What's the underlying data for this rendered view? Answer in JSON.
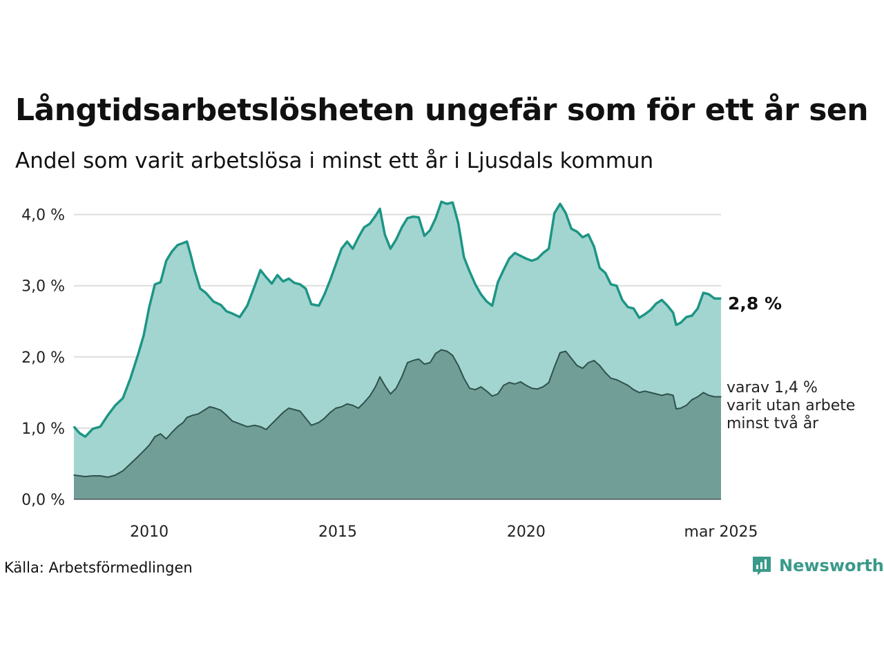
{
  "title": "Långtidsarbetslösheten ungefär som för ett år sen",
  "subtitle": "Andel som varit arbetslösa i minst ett år i Ljusdals kommun",
  "source": "Källa: Arbetsförmedlingen",
  "brand": {
    "name": "Newsworthy",
    "icon": "newsworthy-logo-icon",
    "color": "#3a9a8a"
  },
  "colors": {
    "total_line": "#1d9585",
    "total_fill": "#a3d5d0",
    "long_line": "#2e524b",
    "long_fill": "#719e97",
    "grid": "#dddddd"
  },
  "labels": {
    "last_value": "2,8 %",
    "sub_lines": [
      "varav 1,4 %",
      "varit utan arbete",
      "minst två år"
    ]
  },
  "chart_data": {
    "type": "area",
    "x_ticks": [
      {
        "x": 2010,
        "label": "2010"
      },
      {
        "x": 2015,
        "label": "2015"
      },
      {
        "x": 2020,
        "label": "2020"
      },
      {
        "x": 2025.17,
        "label": "mar 2025"
      }
    ],
    "xlim": [
      2008.0,
      2025.17
    ],
    "y_ticks": [
      {
        "v": 0,
        "label": "0,0 %"
      },
      {
        "v": 1,
        "label": "1,0 %"
      },
      {
        "v": 2,
        "label": "2,0 %"
      },
      {
        "v": 3,
        "label": "3,0 %"
      },
      {
        "v": 4,
        "label": "4,0 %"
      }
    ],
    "ylim": [
      0,
      4.2
    ],
    "grid": true,
    "series": [
      {
        "key": "total",
        "points": [
          [
            2008.0,
            1.02
          ],
          [
            2008.15,
            0.93
          ],
          [
            2008.3,
            0.88
          ],
          [
            2008.5,
            0.99
          ],
          [
            2008.7,
            1.02
          ],
          [
            2008.9,
            1.18
          ],
          [
            2009.1,
            1.32
          ],
          [
            2009.3,
            1.42
          ],
          [
            2009.5,
            1.7
          ],
          [
            2009.7,
            2.03
          ],
          [
            2009.85,
            2.3
          ],
          [
            2010.0,
            2.7
          ],
          [
            2010.15,
            3.02
          ],
          [
            2010.3,
            3.05
          ],
          [
            2010.45,
            3.35
          ],
          [
            2010.6,
            3.48
          ],
          [
            2010.75,
            3.57
          ],
          [
            2010.9,
            3.6
          ],
          [
            2011.0,
            3.62
          ],
          [
            2011.1,
            3.43
          ],
          [
            2011.2,
            3.22
          ],
          [
            2011.35,
            2.96
          ],
          [
            2011.5,
            2.9
          ],
          [
            2011.7,
            2.78
          ],
          [
            2011.9,
            2.73
          ],
          [
            2012.05,
            2.64
          ],
          [
            2012.2,
            2.61
          ],
          [
            2012.4,
            2.56
          ],
          [
            2012.6,
            2.72
          ],
          [
            2012.8,
            3.0
          ],
          [
            2012.95,
            3.22
          ],
          [
            2013.1,
            3.12
          ],
          [
            2013.25,
            3.03
          ],
          [
            2013.4,
            3.15
          ],
          [
            2013.55,
            3.06
          ],
          [
            2013.7,
            3.1
          ],
          [
            2013.85,
            3.04
          ],
          [
            2014.0,
            3.02
          ],
          [
            2014.15,
            2.96
          ],
          [
            2014.3,
            2.74
          ],
          [
            2014.5,
            2.72
          ],
          [
            2014.65,
            2.88
          ],
          [
            2014.8,
            3.08
          ],
          [
            2014.95,
            3.3
          ],
          [
            2015.1,
            3.52
          ],
          [
            2015.25,
            3.62
          ],
          [
            2015.4,
            3.52
          ],
          [
            2015.55,
            3.68
          ],
          [
            2015.7,
            3.82
          ],
          [
            2015.85,
            3.87
          ],
          [
            2016.0,
            3.98
          ],
          [
            2016.12,
            4.08
          ],
          [
            2016.25,
            3.72
          ],
          [
            2016.4,
            3.52
          ],
          [
            2016.55,
            3.65
          ],
          [
            2016.7,
            3.82
          ],
          [
            2016.85,
            3.95
          ],
          [
            2017.0,
            3.97
          ],
          [
            2017.15,
            3.96
          ],
          [
            2017.3,
            3.7
          ],
          [
            2017.45,
            3.78
          ],
          [
            2017.6,
            3.95
          ],
          [
            2017.75,
            4.18
          ],
          [
            2017.9,
            4.15
          ],
          [
            2018.05,
            4.17
          ],
          [
            2018.2,
            3.88
          ],
          [
            2018.35,
            3.4
          ],
          [
            2018.5,
            3.2
          ],
          [
            2018.65,
            3.02
          ],
          [
            2018.8,
            2.88
          ],
          [
            2018.95,
            2.78
          ],
          [
            2019.1,
            2.72
          ],
          [
            2019.25,
            3.05
          ],
          [
            2019.4,
            3.22
          ],
          [
            2019.55,
            3.38
          ],
          [
            2019.7,
            3.46
          ],
          [
            2019.85,
            3.42
          ],
          [
            2020.0,
            3.38
          ],
          [
            2020.15,
            3.35
          ],
          [
            2020.3,
            3.38
          ],
          [
            2020.45,
            3.46
          ],
          [
            2020.6,
            3.52
          ],
          [
            2020.75,
            4.02
          ],
          [
            2020.9,
            4.15
          ],
          [
            2021.05,
            4.02
          ],
          [
            2021.2,
            3.8
          ],
          [
            2021.35,
            3.76
          ],
          [
            2021.5,
            3.68
          ],
          [
            2021.65,
            3.72
          ],
          [
            2021.8,
            3.55
          ],
          [
            2021.95,
            3.25
          ],
          [
            2022.1,
            3.18
          ],
          [
            2022.25,
            3.02
          ],
          [
            2022.4,
            3.0
          ],
          [
            2022.55,
            2.8
          ],
          [
            2022.7,
            2.7
          ],
          [
            2022.85,
            2.68
          ],
          [
            2023.0,
            2.55
          ],
          [
            2023.15,
            2.6
          ],
          [
            2023.3,
            2.66
          ],
          [
            2023.45,
            2.75
          ],
          [
            2023.6,
            2.8
          ],
          [
            2023.75,
            2.72
          ],
          [
            2023.9,
            2.62
          ],
          [
            2023.98,
            2.45
          ],
          [
            2024.1,
            2.48
          ],
          [
            2024.25,
            2.56
          ],
          [
            2024.4,
            2.58
          ],
          [
            2024.55,
            2.68
          ],
          [
            2024.7,
            2.9
          ],
          [
            2024.85,
            2.88
          ],
          [
            2025.0,
            2.82
          ],
          [
            2025.17,
            2.82
          ]
        ]
      },
      {
        "key": "long",
        "points": [
          [
            2008.0,
            0.34
          ],
          [
            2008.15,
            0.33
          ],
          [
            2008.3,
            0.32
          ],
          [
            2008.5,
            0.33
          ],
          [
            2008.7,
            0.33
          ],
          [
            2008.9,
            0.31
          ],
          [
            2009.1,
            0.34
          ],
          [
            2009.3,
            0.4
          ],
          [
            2009.5,
            0.5
          ],
          [
            2009.7,
            0.6
          ],
          [
            2009.85,
            0.68
          ],
          [
            2010.0,
            0.76
          ],
          [
            2010.15,
            0.88
          ],
          [
            2010.3,
            0.92
          ],
          [
            2010.45,
            0.85
          ],
          [
            2010.6,
            0.94
          ],
          [
            2010.75,
            1.02
          ],
          [
            2010.9,
            1.08
          ],
          [
            2011.0,
            1.15
          ],
          [
            2011.15,
            1.18
          ],
          [
            2011.3,
            1.2
          ],
          [
            2011.45,
            1.25
          ],
          [
            2011.6,
            1.3
          ],
          [
            2011.75,
            1.28
          ],
          [
            2011.9,
            1.25
          ],
          [
            2012.05,
            1.18
          ],
          [
            2012.2,
            1.1
          ],
          [
            2012.4,
            1.06
          ],
          [
            2012.6,
            1.02
          ],
          [
            2012.8,
            1.04
          ],
          [
            2012.95,
            1.02
          ],
          [
            2013.1,
            0.98
          ],
          [
            2013.25,
            1.06
          ],
          [
            2013.4,
            1.14
          ],
          [
            2013.55,
            1.22
          ],
          [
            2013.7,
            1.28
          ],
          [
            2013.85,
            1.26
          ],
          [
            2014.0,
            1.24
          ],
          [
            2014.15,
            1.14
          ],
          [
            2014.3,
            1.04
          ],
          [
            2014.5,
            1.08
          ],
          [
            2014.65,
            1.14
          ],
          [
            2014.8,
            1.22
          ],
          [
            2014.95,
            1.28
          ],
          [
            2015.1,
            1.3
          ],
          [
            2015.25,
            1.34
          ],
          [
            2015.4,
            1.32
          ],
          [
            2015.55,
            1.28
          ],
          [
            2015.7,
            1.36
          ],
          [
            2015.85,
            1.45
          ],
          [
            2016.0,
            1.58
          ],
          [
            2016.12,
            1.72
          ],
          [
            2016.25,
            1.6
          ],
          [
            2016.4,
            1.48
          ],
          [
            2016.55,
            1.56
          ],
          [
            2016.7,
            1.72
          ],
          [
            2016.85,
            1.92
          ],
          [
            2017.0,
            1.95
          ],
          [
            2017.15,
            1.97
          ],
          [
            2017.3,
            1.9
          ],
          [
            2017.45,
            1.92
          ],
          [
            2017.6,
            2.05
          ],
          [
            2017.75,
            2.1
          ],
          [
            2017.9,
            2.08
          ],
          [
            2018.05,
            2.02
          ],
          [
            2018.2,
            1.88
          ],
          [
            2018.35,
            1.7
          ],
          [
            2018.5,
            1.56
          ],
          [
            2018.65,
            1.54
          ],
          [
            2018.8,
            1.58
          ],
          [
            2018.95,
            1.52
          ],
          [
            2019.1,
            1.45
          ],
          [
            2019.25,
            1.48
          ],
          [
            2019.4,
            1.6
          ],
          [
            2019.55,
            1.64
          ],
          [
            2019.7,
            1.62
          ],
          [
            2019.85,
            1.65
          ],
          [
            2020.0,
            1.6
          ],
          [
            2020.15,
            1.56
          ],
          [
            2020.3,
            1.55
          ],
          [
            2020.45,
            1.58
          ],
          [
            2020.6,
            1.64
          ],
          [
            2020.75,
            1.86
          ],
          [
            2020.9,
            2.06
          ],
          [
            2021.05,
            2.08
          ],
          [
            2021.2,
            1.98
          ],
          [
            2021.35,
            1.88
          ],
          [
            2021.5,
            1.84
          ],
          [
            2021.65,
            1.92
          ],
          [
            2021.8,
            1.95
          ],
          [
            2021.95,
            1.88
          ],
          [
            2022.1,
            1.78
          ],
          [
            2022.25,
            1.7
          ],
          [
            2022.4,
            1.68
          ],
          [
            2022.55,
            1.64
          ],
          [
            2022.7,
            1.6
          ],
          [
            2022.85,
            1.54
          ],
          [
            2023.0,
            1.5
          ],
          [
            2023.15,
            1.52
          ],
          [
            2023.3,
            1.5
          ],
          [
            2023.45,
            1.48
          ],
          [
            2023.6,
            1.46
          ],
          [
            2023.75,
            1.48
          ],
          [
            2023.9,
            1.46
          ],
          [
            2023.98,
            1.27
          ],
          [
            2024.1,
            1.28
          ],
          [
            2024.25,
            1.32
          ],
          [
            2024.4,
            1.4
          ],
          [
            2024.55,
            1.44
          ],
          [
            2024.7,
            1.5
          ],
          [
            2024.85,
            1.46
          ],
          [
            2025.0,
            1.44
          ],
          [
            2025.17,
            1.44
          ]
        ]
      }
    ]
  }
}
